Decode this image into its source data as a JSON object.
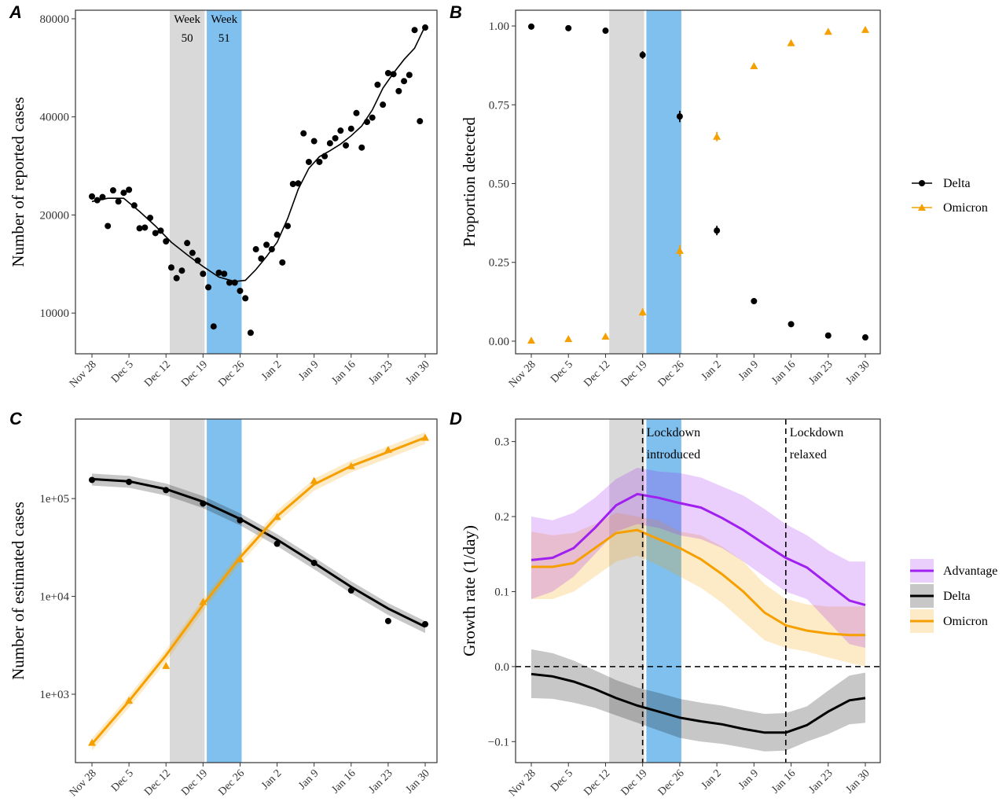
{
  "colors": {
    "delta": "#000000",
    "omicron": "#F5A000",
    "advantage": "#A020F0",
    "week50_shade": "#D9D9D9",
    "week51_shade": "#7FC0EE"
  },
  "x_tick_labels": [
    "Nov 28",
    "Dec 5",
    "Dec 12",
    "Dec 19",
    "Dec 26",
    "Jan 2",
    "Jan 9",
    "Jan 16",
    "Jan 23",
    "Jan 30"
  ],
  "week_labels": [
    {
      "line1": "Week",
      "line2": "50"
    },
    {
      "line1": "Week",
      "line2": "51"
    }
  ],
  "chart_data": [
    {
      "panel": "A",
      "type": "scatter",
      "xlabel": "",
      "ylabel": "Number of reported cases",
      "y_scale": "log",
      "yticks": [
        10000,
        20000,
        40000,
        80000
      ],
      "ytick_labels": [
        "10000",
        "20000",
        "40000",
        "80000"
      ],
      "ylim": [
        7500,
        85000
      ],
      "x_domain": [
        "2021-11-28",
        "2022-01-30"
      ],
      "shaded_weeks": [
        [
          "2021-12-13",
          "2021-12-19"
        ],
        [
          "2021-12-20",
          "2021-12-26"
        ]
      ],
      "points": [
        [
          "2021-11-28",
          22800
        ],
        [
          "2021-11-29",
          22200
        ],
        [
          "2021-11-30",
          22700
        ],
        [
          "2021-12-01",
          18500
        ],
        [
          "2021-12-02",
          23800
        ],
        [
          "2021-12-03",
          22000
        ],
        [
          "2021-12-04",
          23400
        ],
        [
          "2021-12-05",
          23900
        ],
        [
          "2021-12-06",
          21400
        ],
        [
          "2021-12-07",
          18200
        ],
        [
          "2021-12-08",
          18300
        ],
        [
          "2021-12-09",
          19600
        ],
        [
          "2021-12-10",
          17600
        ],
        [
          "2021-12-11",
          17900
        ],
        [
          "2021-12-12",
          16600
        ],
        [
          "2021-12-13",
          13800
        ],
        [
          "2021-12-14",
          12800
        ],
        [
          "2021-12-15",
          13500
        ],
        [
          "2021-12-16",
          16400
        ],
        [
          "2021-12-17",
          15300
        ],
        [
          "2021-12-18",
          14500
        ],
        [
          "2021-12-19",
          13200
        ],
        [
          "2021-12-20",
          12000
        ],
        [
          "2021-12-21",
          9100
        ],
        [
          "2021-12-22",
          13300
        ],
        [
          "2021-12-23",
          13200
        ],
        [
          "2021-12-24",
          12400
        ],
        [
          "2021-12-25",
          12400
        ],
        [
          "2021-12-26",
          11700
        ],
        [
          "2021-12-27",
          11100
        ],
        [
          "2021-12-28",
          8700
        ],
        [
          "2021-12-29",
          15700
        ],
        [
          "2021-12-30",
          14700
        ],
        [
          "2021-12-31",
          16200
        ],
        [
          "2022-01-01",
          15700
        ],
        [
          "2022-01-02",
          17400
        ],
        [
          "2022-01-03",
          14300
        ],
        [
          "2022-01-04",
          18500
        ],
        [
          "2022-01-05",
          24900
        ],
        [
          "2022-01-06",
          25000
        ],
        [
          "2022-01-07",
          35600
        ],
        [
          "2022-01-08",
          29100
        ],
        [
          "2022-01-09",
          33700
        ],
        [
          "2022-01-10",
          29100
        ],
        [
          "2022-01-11",
          30300
        ],
        [
          "2022-01-12",
          33200
        ],
        [
          "2022-01-13",
          34400
        ],
        [
          "2022-01-14",
          36300
        ],
        [
          "2022-01-15",
          32700
        ],
        [
          "2022-01-16",
          36800
        ],
        [
          "2022-01-17",
          41100
        ],
        [
          "2022-01-18",
          32200
        ],
        [
          "2022-01-19",
          38600
        ],
        [
          "2022-01-20",
          39800
        ],
        [
          "2022-01-21",
          50200
        ],
        [
          "2022-01-22",
          43600
        ],
        [
          "2022-01-23",
          54500
        ],
        [
          "2022-01-24",
          54100
        ],
        [
          "2022-01-25",
          48000
        ],
        [
          "2022-01-26",
          51500
        ],
        [
          "2022-01-27",
          53800
        ],
        [
          "2022-01-28",
          73900
        ],
        [
          "2022-01-29",
          38800
        ],
        [
          "2022-01-30",
          75200
        ]
      ],
      "smooth_line": [
        [
          "2021-11-28",
          22000
        ],
        [
          "2021-12-01",
          22500
        ],
        [
          "2021-12-04",
          22500
        ],
        [
          "2021-12-07",
          20500
        ],
        [
          "2021-12-10",
          18500
        ],
        [
          "2021-12-13",
          16500
        ],
        [
          "2021-12-16",
          15100
        ],
        [
          "2021-12-19",
          13900
        ],
        [
          "2021-12-22",
          12900
        ],
        [
          "2021-12-25",
          12500
        ],
        [
          "2021-12-27",
          12600
        ],
        [
          "2021-12-29",
          13600
        ],
        [
          "2021-12-31",
          14900
        ],
        [
          "2022-01-02",
          16500
        ],
        [
          "2022-01-04",
          19500
        ],
        [
          "2022-01-06",
          24000
        ],
        [
          "2022-01-08",
          27800
        ],
        [
          "2022-01-10",
          30200
        ],
        [
          "2022-01-12",
          31500
        ],
        [
          "2022-01-14",
          33000
        ],
        [
          "2022-01-16",
          35000
        ],
        [
          "2022-01-18",
          37500
        ],
        [
          "2022-01-20",
          42000
        ],
        [
          "2022-01-22",
          49000
        ],
        [
          "2022-01-24",
          54500
        ],
        [
          "2022-01-26",
          60000
        ],
        [
          "2022-01-28",
          65000
        ],
        [
          "2022-01-30",
          76000
        ]
      ]
    },
    {
      "panel": "B",
      "type": "scatter",
      "xlabel": "",
      "ylabel": "Proportion detected",
      "yticks": [
        0,
        0.25,
        0.5,
        0.75,
        1
      ],
      "ytick_labels": [
        "0.00",
        "0.25",
        "0.50",
        "0.75",
        "1.00"
      ],
      "ylim": [
        -0.04,
        1.05
      ],
      "shaded_weeks": [
        [
          "2021-12-13",
          "2021-12-19"
        ],
        [
          "2021-12-20",
          "2021-12-26"
        ]
      ],
      "legend": [
        "Delta",
        "Omicron"
      ],
      "legend_position": "right",
      "series": [
        {
          "name": "Delta",
          "marker": "circle",
          "x": [
            "2021-11-28",
            "2021-12-05",
            "2021-12-12",
            "2021-12-19",
            "2021-12-26",
            "2022-01-02",
            "2022-01-09",
            "2022-01-16",
            "2022-01-23",
            "2022-01-30"
          ],
          "y": [
            0.998,
            0.993,
            0.985,
            0.908,
            0.713,
            0.351,
            0.127,
            0.054,
            0.018,
            0.012
          ],
          "err": [
            0.002,
            0.002,
            0.003,
            0.012,
            0.018,
            0.015,
            0.008,
            0.004,
            0.003,
            0.002
          ]
        },
        {
          "name": "Omicron",
          "marker": "triangle",
          "x": [
            "2021-11-28",
            "2021-12-05",
            "2021-12-12",
            "2021-12-19",
            "2021-12-26",
            "2022-01-02",
            "2022-01-09",
            "2022-01-16",
            "2022-01-23",
            "2022-01-30"
          ],
          "y": [
            0.002,
            0.007,
            0.015,
            0.092,
            0.287,
            0.649,
            0.873,
            0.946,
            0.982,
            0.988
          ],
          "err": [
            0.002,
            0.002,
            0.003,
            0.012,
            0.018,
            0.015,
            0.008,
            0.004,
            0.003,
            0.002
          ]
        }
      ]
    },
    {
      "panel": "C",
      "type": "line",
      "xlabel": "",
      "ylabel": "Number of estimated cases",
      "y_scale": "log",
      "yticks": [
        1000,
        10000,
        100000
      ],
      "ytick_labels": [
        "1e+03",
        "1e+04",
        "1e+05"
      ],
      "ylim": [
        200,
        650000
      ],
      "shaded_weeks": [
        [
          "2021-12-13",
          "2021-12-19"
        ],
        [
          "2021-12-20",
          "2021-12-26"
        ]
      ],
      "series": [
        {
          "name": "Delta",
          "marker": "circle",
          "points": [
            [
              "2021-11-28",
              155000
            ],
            [
              "2021-12-05",
              148000
            ],
            [
              "2021-12-12",
              122000
            ],
            [
              "2021-12-19",
              89000
            ],
            [
              "2021-12-26",
              60000
            ],
            [
              "2022-01-02",
              34500
            ],
            [
              "2022-01-09",
              22000
            ],
            [
              "2022-01-16",
              11500
            ],
            [
              "2022-01-23",
              5600
            ],
            [
              "2022-01-30",
              5200
            ]
          ],
          "curve": [
            [
              "2021-11-28",
              158000
            ],
            [
              "2021-12-05",
              150000
            ],
            [
              "2021-12-12",
              125000
            ],
            [
              "2021-12-19",
              93000
            ],
            [
              "2021-12-26",
              62000
            ],
            [
              "2022-01-02",
              38000
            ],
            [
              "2022-01-09",
              22000
            ],
            [
              "2022-01-16",
              12500
            ],
            [
              "2022-01-23",
              7500
            ],
            [
              "2022-01-30",
              4900
            ]
          ],
          "band_rel": 0.14
        },
        {
          "name": "Omicron",
          "marker": "triangle",
          "points": [
            [
              "2021-11-28",
              320
            ],
            [
              "2021-12-05",
              860
            ],
            [
              "2021-12-12",
              1950
            ],
            [
              "2021-12-19",
              8800
            ],
            [
              "2021-12-26",
              24000
            ],
            [
              "2022-01-02",
              65000
            ],
            [
              "2022-01-09",
              152000
            ],
            [
              "2022-01-16",
              215000
            ],
            [
              "2022-01-23",
              315000
            ],
            [
              "2022-01-30",
              420000
            ]
          ],
          "curve": [
            [
              "2021-11-28",
              310
            ],
            [
              "2021-12-05",
              850
            ],
            [
              "2021-12-12",
              2500
            ],
            [
              "2021-12-19",
              8200
            ],
            [
              "2021-12-26",
              25000
            ],
            [
              "2022-01-02",
              66000
            ],
            [
              "2022-01-09",
              140000
            ],
            [
              "2022-01-16",
              215000
            ],
            [
              "2022-01-23",
              300000
            ],
            [
              "2022-01-30",
              420000
            ]
          ],
          "band_rel": 0.14
        }
      ]
    },
    {
      "panel": "D",
      "type": "area",
      "xlabel": "",
      "ylabel": "Growth rate (1/day)",
      "yticks": [
        -0.1,
        0,
        0.1,
        0.2,
        0.3
      ],
      "ytick_labels": [
        "−0.1",
        "0.0",
        "0.1",
        "0.2",
        "0.3"
      ],
      "ylim": [
        -0.128,
        0.33
      ],
      "shaded_weeks": [
        [
          "2021-12-13",
          "2021-12-19"
        ],
        [
          "2021-12-20",
          "2021-12-26"
        ]
      ],
      "hline": 0,
      "vlines": [
        {
          "date": "2021-12-19",
          "line1": "Lockdown",
          "line2": "introduced"
        },
        {
          "date": "2022-01-15",
          "line1": "Lockdown",
          "line2": "relaxed"
        }
      ],
      "legend": [
        "Advantage",
        "Delta",
        "Omicron"
      ],
      "legend_position": "right",
      "series": [
        {
          "name": "Advantage",
          "x": [
            "2021-11-28",
            "2021-12-02",
            "2021-12-06",
            "2021-12-10",
            "2021-12-14",
            "2021-12-18",
            "2021-12-22",
            "2021-12-26",
            "2021-12-30",
            "2022-01-03",
            "2022-01-07",
            "2022-01-11",
            "2022-01-15",
            "2022-01-19",
            "2022-01-23",
            "2022-01-27",
            "2022-01-30"
          ],
          "mid": [
            0.142,
            0.145,
            0.158,
            0.185,
            0.215,
            0.23,
            0.225,
            0.218,
            0.212,
            0.198,
            0.182,
            0.163,
            0.145,
            0.132,
            0.11,
            0.088,
            0.082
          ],
          "lo": [
            0.09,
            0.1,
            0.12,
            0.15,
            0.18,
            0.19,
            0.185,
            0.175,
            0.17,
            0.158,
            0.14,
            0.12,
            0.1,
            0.09,
            0.06,
            0.03,
            0.025
          ],
          "hi": [
            0.2,
            0.195,
            0.205,
            0.225,
            0.25,
            0.265,
            0.26,
            0.258,
            0.252,
            0.24,
            0.228,
            0.21,
            0.19,
            0.175,
            0.155,
            0.14,
            0.14
          ]
        },
        {
          "name": "Delta",
          "x": [
            "2021-11-28",
            "2021-12-02",
            "2021-12-06",
            "2021-12-10",
            "2021-12-14",
            "2021-12-18",
            "2021-12-22",
            "2021-12-26",
            "2021-12-30",
            "2022-01-03",
            "2022-01-07",
            "2022-01-11",
            "2022-01-15",
            "2022-01-19",
            "2022-01-23",
            "2022-01-27",
            "2022-01-30"
          ],
          "mid": [
            -0.01,
            -0.013,
            -0.02,
            -0.03,
            -0.042,
            -0.052,
            -0.06,
            -0.068,
            -0.073,
            -0.077,
            -0.083,
            -0.088,
            -0.088,
            -0.078,
            -0.06,
            -0.045,
            -0.042
          ],
          "lo": [
            -0.042,
            -0.043,
            -0.048,
            -0.055,
            -0.065,
            -0.075,
            -0.085,
            -0.095,
            -0.1,
            -0.103,
            -0.108,
            -0.113,
            -0.112,
            -0.1,
            -0.09,
            -0.077,
            -0.075
          ],
          "hi": [
            0.023,
            0.018,
            0.008,
            -0.005,
            -0.018,
            -0.028,
            -0.035,
            -0.043,
            -0.048,
            -0.052,
            -0.058,
            -0.063,
            -0.062,
            -0.053,
            -0.032,
            -0.012,
            -0.008
          ]
        },
        {
          "name": "Omicron",
          "x": [
            "2021-11-28",
            "2021-12-02",
            "2021-12-06",
            "2021-12-10",
            "2021-12-14",
            "2021-12-18",
            "2021-12-22",
            "2021-12-26",
            "2021-12-30",
            "2022-01-03",
            "2022-01-07",
            "2022-01-11",
            "2022-01-15",
            "2022-01-19",
            "2022-01-23",
            "2022-01-27",
            "2022-01-30"
          ],
          "mid": [
            0.133,
            0.133,
            0.138,
            0.158,
            0.178,
            0.182,
            0.17,
            0.158,
            0.143,
            0.123,
            0.1,
            0.072,
            0.055,
            0.048,
            0.044,
            0.042,
            0.042
          ],
          "lo": [
            0.09,
            0.09,
            0.1,
            0.12,
            0.14,
            0.148,
            0.135,
            0.12,
            0.105,
            0.085,
            0.06,
            0.035,
            0.025,
            0.02,
            0.012,
            0.005,
            0.0
          ],
          "hi": [
            0.18,
            0.175,
            0.178,
            0.19,
            0.205,
            0.2,
            0.195,
            0.18,
            0.175,
            0.16,
            0.14,
            0.11,
            0.09,
            0.083,
            0.08,
            0.08,
            0.08
          ]
        }
      ]
    }
  ]
}
